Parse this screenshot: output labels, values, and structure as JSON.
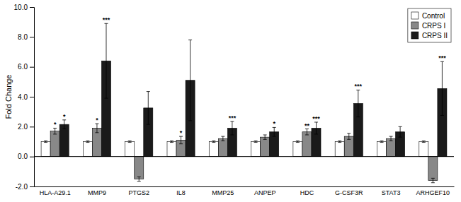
{
  "chart_data": {
    "type": "bar",
    "categories": [
      "HLA-A29.1",
      "MMP9",
      "PTGS2",
      "IL8",
      "MMP25",
      "ANPEP",
      "HDC",
      "G-CSF3R",
      "STAT3",
      "ARHGEF10"
    ],
    "series": [
      {
        "name": "Control",
        "color": "#ffffff",
        "values": [
          1.0,
          1.0,
          1.0,
          1.0,
          1.0,
          1.0,
          1.0,
          1.0,
          1.0,
          1.0
        ],
        "errors": [
          0.05,
          0.05,
          0.05,
          0.05,
          0.05,
          0.05,
          0.05,
          0.05,
          0.05,
          0.05
        ]
      },
      {
        "name": "CRPS I",
        "color": "#888888",
        "values": [
          1.7,
          1.9,
          -1.5,
          1.1,
          1.2,
          1.3,
          1.65,
          1.35,
          1.2,
          -1.6
        ],
        "errors": [
          0.2,
          0.3,
          0.15,
          0.25,
          0.15,
          0.15,
          0.2,
          0.2,
          0.15,
          0.15
        ],
        "significance": [
          "*",
          "*",
          null,
          "*",
          null,
          null,
          "**",
          null,
          null,
          null
        ]
      },
      {
        "name": "CRPS II",
        "color": "#1a1a1a",
        "values": [
          2.15,
          6.4,
          3.25,
          5.1,
          1.9,
          1.65,
          1.9,
          3.55,
          1.65,
          4.55
        ],
        "errors": [
          0.3,
          2.5,
          1.1,
          2.7,
          0.45,
          0.3,
          0.4,
          0.9,
          0.35,
          1.8
        ],
        "significance": [
          "*",
          "***",
          null,
          null,
          "***",
          "*",
          "***",
          "***",
          null,
          "***"
        ]
      }
    ],
    "ylabel": "Fold Change",
    "ylim": [
      -2.0,
      10.0
    ],
    "yticks": [
      {
        "value": -2.0,
        "label": "-2.0"
      },
      {
        "value": 0.0,
        "label": "0.0"
      },
      {
        "value": 2.0,
        "label": "2.0"
      },
      {
        "value": 4.0,
        "label": "4.0"
      },
      {
        "value": 6.0,
        "label": "6.0"
      },
      {
        "value": 8.0,
        "label": "8.0"
      },
      {
        "value": 10.0,
        "label": "10.0"
      }
    ],
    "legend": "upper right",
    "grid": false
  }
}
